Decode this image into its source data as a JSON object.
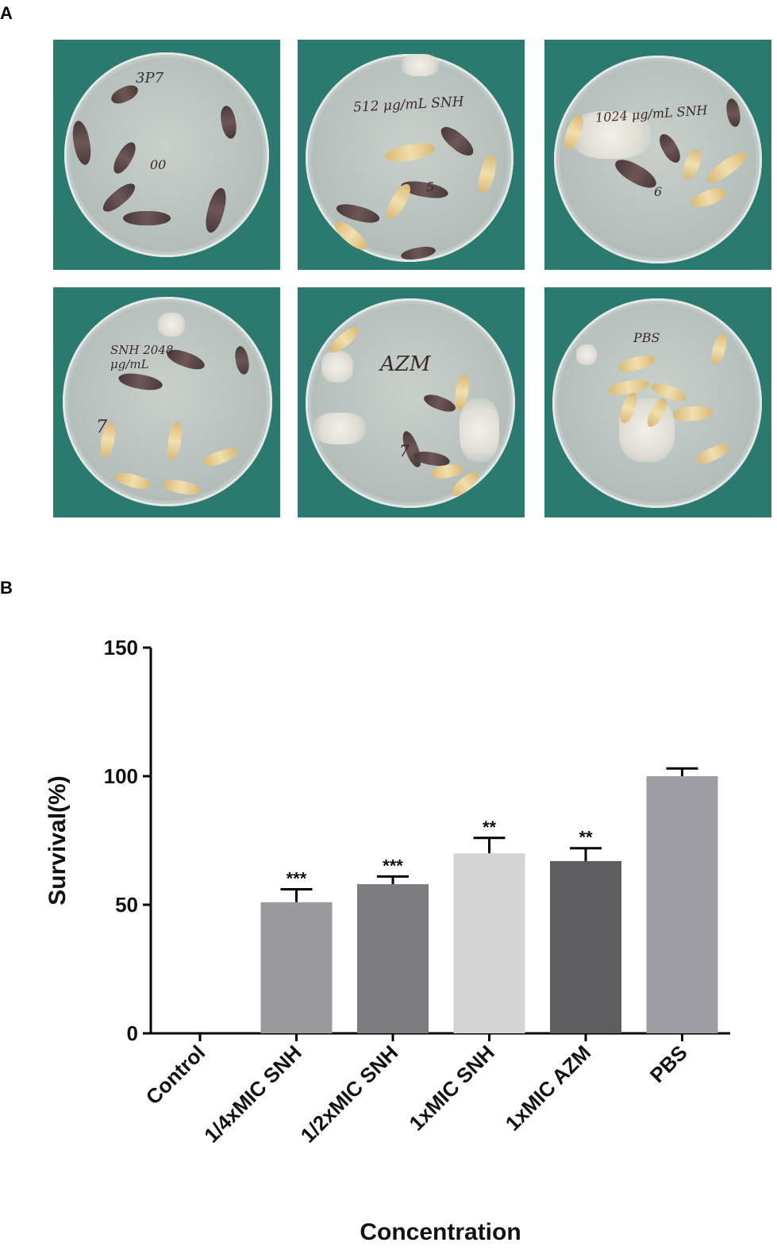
{
  "panel_a_label": "A",
  "panel_b_label": "B",
  "photos": [
    {
      "handwriting": "3P7",
      "extra": "00"
    },
    {
      "handwriting": "512 μg/mL SNH",
      "extra": "5"
    },
    {
      "handwriting": "1024 μg/mL SNH",
      "extra": "6"
    },
    {
      "handwriting": "SNH 2048 μg/mL",
      "extra": "7"
    },
    {
      "handwriting": "AZM",
      "extra": "7"
    },
    {
      "handwriting": "PBS",
      "extra": ""
    }
  ],
  "chart_data": {
    "type": "bar",
    "categories": [
      "Control",
      "1/4xMIC SNH",
      "1/2xMIC SNH",
      "1xMIC SNH",
      "1xMIC AZM",
      "PBS"
    ],
    "values": [
      0,
      51,
      58,
      70,
      67,
      100
    ],
    "errors": [
      0,
      5,
      3,
      6,
      5,
      3
    ],
    "significance": [
      "",
      "***",
      "***",
      "**",
      "**",
      ""
    ],
    "colors": [
      "#9a999e",
      "#9a999e",
      "#7c7c80",
      "#d4d4d4",
      "#5e5e60",
      "#9e9da3"
    ],
    "xlabel": "Concentration",
    "ylabel": "Survival(%)",
    "ylim": [
      0,
      150
    ],
    "yticks": [
      0,
      50,
      100,
      150
    ]
  }
}
